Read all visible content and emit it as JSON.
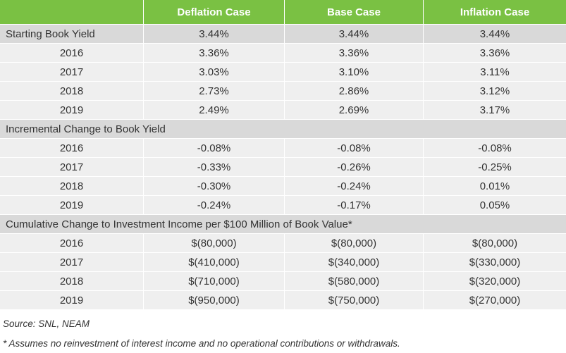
{
  "header": {
    "col0": "",
    "col1": "Deflation Case",
    "col2": "Base Case",
    "col3": "Inflation Case"
  },
  "book_yield": {
    "starting": {
      "label": "Starting Book Yield",
      "values": [
        "3.44%",
        "3.44%",
        "3.44%"
      ]
    },
    "rows": [
      {
        "year": "2016",
        "values": [
          "3.36%",
          "3.36%",
          "3.36%"
        ]
      },
      {
        "year": "2017",
        "values": [
          "3.03%",
          "3.10%",
          "3.11%"
        ]
      },
      {
        "year": "2018",
        "values": [
          "2.73%",
          "2.86%",
          "3.12%"
        ]
      },
      {
        "year": "2019",
        "values": [
          "2.49%",
          "2.69%",
          "3.17%"
        ]
      }
    ]
  },
  "incremental": {
    "title": "Incremental Change to Book Yield",
    "rows": [
      {
        "year": "2016",
        "values": [
          "-0.08%",
          "-0.08%",
          "-0.08%"
        ]
      },
      {
        "year": "2017",
        "values": [
          "-0.33%",
          "-0.26%",
          "-0.25%"
        ]
      },
      {
        "year": "2018",
        "values": [
          "-0.30%",
          "-0.24%",
          "0.01%"
        ]
      },
      {
        "year": "2019",
        "values": [
          "-0.24%",
          "-0.17%",
          "0.05%"
        ]
      }
    ]
  },
  "cumulative": {
    "title": "Cumulative Change to Investment Income per $100 Million of Book Value*",
    "rows": [
      {
        "year": "2016",
        "values": [
          "$(80,000)",
          "$(80,000)",
          "$(80,000)"
        ]
      },
      {
        "year": "2017",
        "values": [
          "$(410,000)",
          "$(340,000)",
          "$(330,000)"
        ]
      },
      {
        "year": "2018",
        "values": [
          "$(710,000)",
          "$(580,000)",
          "$(320,000)"
        ]
      },
      {
        "year": "2019",
        "values": [
          "$(950,000)",
          "$(750,000)",
          "$(270,000)"
        ]
      }
    ]
  },
  "notes": {
    "source": "Source: SNL, NEAM",
    "footnote": "* Assumes no reinvestment of interest income and no operational contributions or withdrawals."
  },
  "colors": {
    "header_green": "#7ac143",
    "row_gray": "#d9d9d9",
    "row_light": "#efefef"
  }
}
